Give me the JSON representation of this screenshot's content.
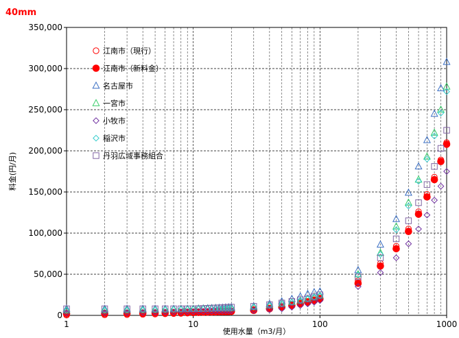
{
  "chart_data": {
    "type": "scatter",
    "title": "40mm",
    "title_color": "#ff0000",
    "xlabel": "使用水量（m3/月）",
    "ylabel": "料金(円/月)",
    "xscale": "log",
    "xlim": [
      1,
      1000
    ],
    "ylim": [
      0,
      350000
    ],
    "x_ticks": [
      1,
      10,
      100,
      1000
    ],
    "x_tick_labels": [
      "1",
      "10",
      "100",
      "1000"
    ],
    "y_ticks": [
      0,
      50000,
      100000,
      150000,
      200000,
      250000,
      300000,
      350000
    ],
    "y_tick_labels": [
      "0",
      "50,000",
      "100,000",
      "150,000",
      "200,000",
      "250,000",
      "300,000",
      "350,000"
    ],
    "grid": true,
    "legend_position": "upper-left",
    "x": [
      1,
      2,
      3,
      4,
      5,
      6,
      7,
      8,
      9,
      10,
      11,
      12,
      13,
      14,
      15,
      16,
      17,
      18,
      19,
      20,
      30,
      40,
      50,
      60,
      70,
      80,
      90,
      100,
      200,
      300,
      400,
      500,
      600,
      700,
      800,
      900,
      1000
    ],
    "series": [
      {
        "name": "江南市（現行）",
        "marker": "circle-open",
        "color": "#ff0000",
        "values": [
          300,
          600,
          900,
          1200,
          1500,
          1800,
          2100,
          2400,
          2700,
          3000,
          3200,
          3400,
          3600,
          3800,
          4000,
          4200,
          4400,
          4600,
          4800,
          5000,
          7000,
          9000,
          11000,
          13000,
          15000,
          17000,
          19000,
          21000,
          42000,
          63000,
          84000,
          105000,
          126000,
          147000,
          168000,
          189000,
          210000
        ]
      },
      {
        "name": "江南市（新料金）",
        "marker": "circle-filled",
        "color": "#ff0000",
        "values": [
          2000,
          2200,
          2400,
          2600,
          2800,
          3000,
          3200,
          3400,
          3600,
          3800,
          3900,
          4000,
          4100,
          4200,
          4300,
          4400,
          4500,
          4600,
          4700,
          4800,
          6000,
          8000,
          10000,
          12000,
          14000,
          16000,
          18000,
          20000,
          39000,
          60000,
          81000,
          102000,
          123000,
          144000,
          165000,
          187000,
          208000
        ]
      },
      {
        "name": "名古屋市",
        "marker": "triangle-open",
        "color": "#3a6fc4",
        "values": [
          8000,
          8000,
          8000,
          8000,
          8000,
          8000,
          8000,
          8000,
          8000,
          8000,
          8200,
          8400,
          8600,
          8800,
          9000,
          9200,
          9400,
          9600,
          9800,
          10000,
          11000,
          14000,
          17000,
          20000,
          23000,
          26000,
          28000,
          29000,
          55000,
          86000,
          117000,
          149000,
          181000,
          213000,
          245000,
          276000,
          308000
        ]
      },
      {
        "name": "一宮市",
        "marker": "triangle-open",
        "color": "#33cc66",
        "values": [
          6000,
          6200,
          6400,
          6600,
          6800,
          7000,
          7200,
          7400,
          7600,
          7800,
          7900,
          8000,
          8100,
          8200,
          8300,
          8400,
          8500,
          8600,
          8700,
          8800,
          10000,
          12000,
          14000,
          16000,
          18000,
          20000,
          22000,
          24000,
          50000,
          76000,
          108000,
          137000,
          165000,
          193000,
          222000,
          250000,
          278000
        ]
      },
      {
        "name": "小牧市",
        "marker": "diamond-open",
        "color": "#7030a0",
        "values": [
          3000,
          3200,
          3400,
          3600,
          3800,
          4000,
          4200,
          4400,
          4600,
          4800,
          4900,
          5000,
          5100,
          5200,
          5300,
          5400,
          5500,
          5600,
          5700,
          5800,
          6000,
          7000,
          8000,
          10000,
          12000,
          14000,
          16000,
          18000,
          35000,
          52000,
          70000,
          87000,
          105000,
          122000,
          140000,
          157000,
          175000
        ]
      },
      {
        "name": "稲沢市",
        "marker": "diamond-open",
        "color": "#33cccc",
        "values": [
          6000,
          6200,
          6400,
          6600,
          6800,
          7000,
          7200,
          7400,
          7600,
          7800,
          7900,
          8000,
          8100,
          8200,
          8300,
          8400,
          8500,
          8600,
          8700,
          8800,
          10000,
          12000,
          14000,
          16000,
          18000,
          20000,
          22000,
          24000,
          49000,
          74000,
          104000,
          133000,
          163000,
          190000,
          218000,
          246000,
          272000
        ]
      },
      {
        "name": "丹羽広域事務組合",
        "marker": "square-open",
        "color": "#8064a2",
        "values": [
          8000,
          8000,
          8000,
          8000,
          8000,
          8000,
          8000,
          8000,
          8000,
          8000,
          8200,
          8400,
          8600,
          8800,
          9000,
          9200,
          9400,
          9600,
          9800,
          10000,
          11000,
          13000,
          15000,
          17000,
          19000,
          21000,
          23000,
          25000,
          47000,
          70000,
          93000,
          115000,
          137000,
          159000,
          181000,
          203000,
          225000
        ]
      }
    ]
  }
}
